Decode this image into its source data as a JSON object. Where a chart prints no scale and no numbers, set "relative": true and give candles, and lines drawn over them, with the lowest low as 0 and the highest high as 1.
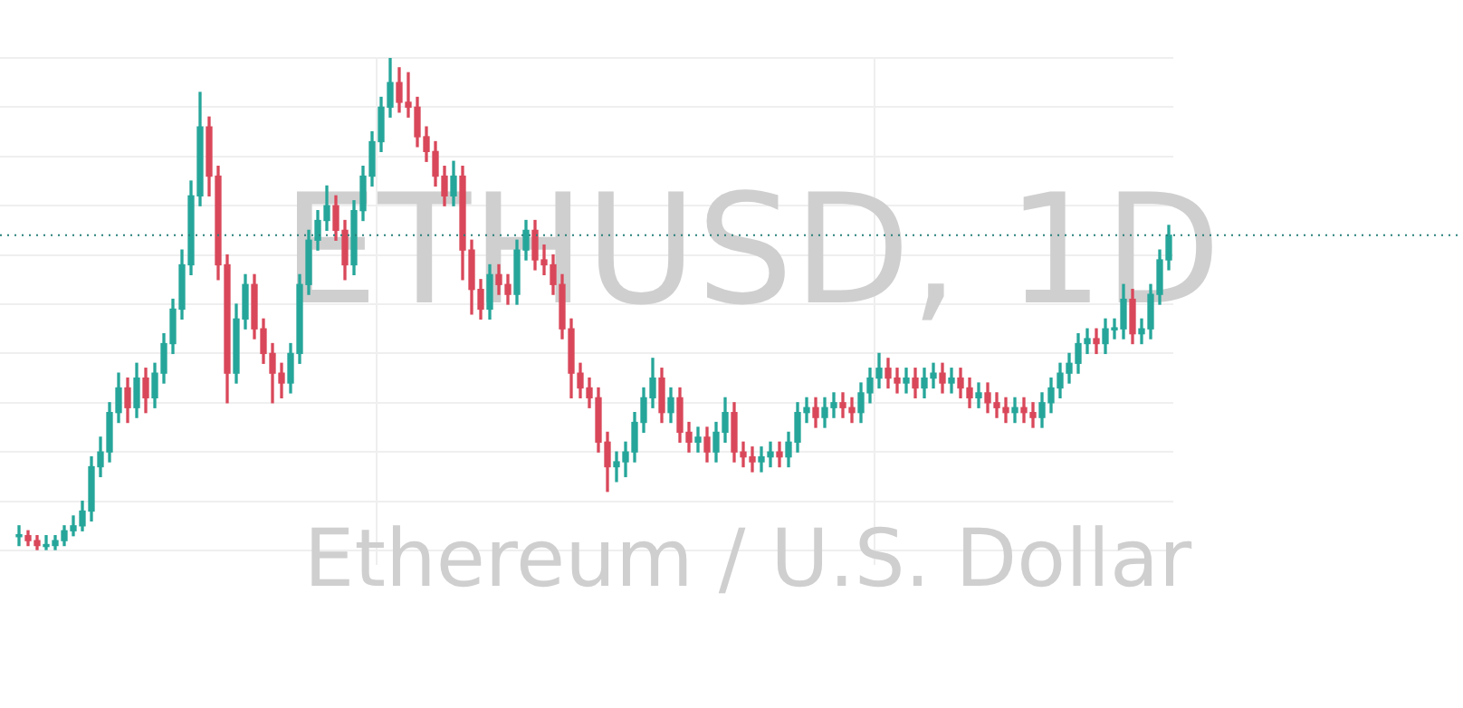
{
  "chart_data": {
    "type": "candlestick",
    "title": "ETHUSD, 1D",
    "subtitle": "Ethereum / U.S. Dollar",
    "relative": true,
    "grid": true,
    "categories": [
      null,
      null,
      null,
      null,
      null,
      null,
      null,
      null,
      null,
      null,
      null,
      null,
      null,
      null,
      null,
      null,
      null,
      null,
      null,
      null,
      null,
      null,
      null,
      null,
      null,
      null,
      null,
      null,
      null,
      null,
      null,
      null,
      null,
      null,
      null,
      null,
      null,
      null,
      null,
      null,
      null,
      null,
      null,
      null,
      null,
      null,
      null,
      null,
      null,
      null,
      null,
      null,
      null,
      null,
      null,
      null,
      null,
      null,
      null,
      null,
      null,
      null,
      null,
      null,
      null,
      null,
      null,
      null,
      null,
      null,
      null,
      null,
      null,
      null,
      null,
      null,
      null,
      null,
      null,
      null,
      null,
      null,
      null,
      null,
      null,
      null,
      null,
      null,
      null,
      null,
      null,
      null,
      null,
      null,
      null,
      null,
      null,
      null,
      null,
      null,
      null,
      null,
      null,
      null,
      null,
      null,
      null,
      null,
      null,
      null,
      null,
      null,
      null,
      null,
      null,
      null,
      null,
      null,
      null,
      null,
      null,
      null,
      null,
      null,
      null,
      null,
      null,
      null
    ],
    "ohlc": [
      [
        0.03,
        0.05,
        0.01,
        0.03
      ],
      [
        0.03,
        0.04,
        0.01,
        0.02
      ],
      [
        0.02,
        0.03,
        0.0,
        0.01
      ],
      [
        0.01,
        0.03,
        0.0,
        0.01
      ],
      [
        0.01,
        0.03,
        0.0,
        0.02
      ],
      [
        0.02,
        0.05,
        0.01,
        0.04
      ],
      [
        0.04,
        0.07,
        0.03,
        0.05
      ],
      [
        0.05,
        0.1,
        0.04,
        0.08
      ],
      [
        0.08,
        0.19,
        0.06,
        0.17
      ],
      [
        0.17,
        0.23,
        0.15,
        0.2
      ],
      [
        0.2,
        0.3,
        0.18,
        0.28
      ],
      [
        0.28,
        0.36,
        0.26,
        0.33
      ],
      [
        0.33,
        0.35,
        0.26,
        0.29
      ],
      [
        0.29,
        0.38,
        0.27,
        0.35
      ],
      [
        0.35,
        0.37,
        0.28,
        0.31
      ],
      [
        0.31,
        0.38,
        0.29,
        0.36
      ],
      [
        0.36,
        0.44,
        0.34,
        0.42
      ],
      [
        0.42,
        0.51,
        0.4,
        0.49
      ],
      [
        0.49,
        0.61,
        0.47,
        0.58
      ],
      [
        0.58,
        0.75,
        0.56,
        0.72
      ],
      [
        0.72,
        0.93,
        0.7,
        0.86
      ],
      [
        0.86,
        0.88,
        0.72,
        0.76
      ],
      [
        0.76,
        0.78,
        0.55,
        0.58
      ],
      [
        0.58,
        0.6,
        0.3,
        0.36
      ],
      [
        0.36,
        0.5,
        0.34,
        0.47
      ],
      [
        0.47,
        0.56,
        0.45,
        0.54
      ],
      [
        0.54,
        0.56,
        0.43,
        0.45
      ],
      [
        0.45,
        0.47,
        0.38,
        0.4
      ],
      [
        0.4,
        0.42,
        0.3,
        0.36
      ],
      [
        0.36,
        0.38,
        0.31,
        0.34
      ],
      [
        0.34,
        0.42,
        0.32,
        0.4
      ],
      [
        0.4,
        0.56,
        0.38,
        0.54
      ],
      [
        0.54,
        0.65,
        0.52,
        0.63
      ],
      [
        0.63,
        0.69,
        0.61,
        0.67
      ],
      [
        0.67,
        0.74,
        0.65,
        0.7
      ],
      [
        0.7,
        0.72,
        0.63,
        0.65
      ],
      [
        0.65,
        0.67,
        0.55,
        0.58
      ],
      [
        0.58,
        0.71,
        0.56,
        0.69
      ],
      [
        0.69,
        0.78,
        0.67,
        0.76
      ],
      [
        0.76,
        0.85,
        0.74,
        0.83
      ],
      [
        0.83,
        0.92,
        0.81,
        0.9
      ],
      [
        0.9,
        1.0,
        0.88,
        0.95
      ],
      [
        0.95,
        0.98,
        0.89,
        0.91
      ],
      [
        0.91,
        0.97,
        0.88,
        0.9
      ],
      [
        0.9,
        0.92,
        0.82,
        0.84
      ],
      [
        0.84,
        0.86,
        0.79,
        0.81
      ],
      [
        0.81,
        0.83,
        0.74,
        0.76
      ],
      [
        0.76,
        0.78,
        0.7,
        0.72
      ],
      [
        0.72,
        0.79,
        0.7,
        0.76
      ],
      [
        0.76,
        0.78,
        0.55,
        0.61
      ],
      [
        0.61,
        0.63,
        0.48,
        0.53
      ],
      [
        0.53,
        0.55,
        0.47,
        0.49
      ],
      [
        0.49,
        0.58,
        0.47,
        0.56
      ],
      [
        0.56,
        0.58,
        0.52,
        0.54
      ],
      [
        0.54,
        0.56,
        0.5,
        0.52
      ],
      [
        0.52,
        0.63,
        0.5,
        0.61
      ],
      [
        0.61,
        0.67,
        0.59,
        0.65
      ],
      [
        0.65,
        0.67,
        0.57,
        0.59
      ],
      [
        0.59,
        0.62,
        0.56,
        0.58
      ],
      [
        0.58,
        0.6,
        0.52,
        0.54
      ],
      [
        0.54,
        0.56,
        0.43,
        0.45
      ],
      [
        0.45,
        0.47,
        0.31,
        0.36
      ],
      [
        0.36,
        0.38,
        0.31,
        0.33
      ],
      [
        0.33,
        0.35,
        0.29,
        0.31
      ],
      [
        0.31,
        0.33,
        0.2,
        0.22
      ],
      [
        0.22,
        0.24,
        0.12,
        0.17
      ],
      [
        0.17,
        0.2,
        0.14,
        0.18
      ],
      [
        0.18,
        0.22,
        0.15,
        0.2
      ],
      [
        0.2,
        0.28,
        0.18,
        0.26
      ],
      [
        0.26,
        0.33,
        0.24,
        0.31
      ],
      [
        0.31,
        0.39,
        0.29,
        0.35
      ],
      [
        0.35,
        0.37,
        0.26,
        0.28
      ],
      [
        0.28,
        0.33,
        0.26,
        0.31
      ],
      [
        0.31,
        0.33,
        0.22,
        0.24
      ],
      [
        0.24,
        0.26,
        0.2,
        0.22
      ],
      [
        0.22,
        0.25,
        0.2,
        0.23
      ],
      [
        0.23,
        0.25,
        0.18,
        0.2
      ],
      [
        0.2,
        0.26,
        0.18,
        0.24
      ],
      [
        0.24,
        0.31,
        0.22,
        0.28
      ],
      [
        0.28,
        0.3,
        0.18,
        0.2
      ],
      [
        0.2,
        0.22,
        0.17,
        0.19
      ],
      [
        0.19,
        0.21,
        0.16,
        0.18
      ],
      [
        0.18,
        0.21,
        0.16,
        0.19
      ],
      [
        0.19,
        0.22,
        0.17,
        0.2
      ],
      [
        0.2,
        0.22,
        0.17,
        0.19
      ],
      [
        0.19,
        0.24,
        0.17,
        0.22
      ],
      [
        0.22,
        0.3,
        0.2,
        0.28
      ],
      [
        0.28,
        0.31,
        0.26,
        0.29
      ],
      [
        0.29,
        0.31,
        0.25,
        0.27
      ],
      [
        0.27,
        0.31,
        0.25,
        0.29
      ],
      [
        0.29,
        0.32,
        0.27,
        0.3
      ],
      [
        0.3,
        0.32,
        0.27,
        0.29
      ],
      [
        0.29,
        0.31,
        0.26,
        0.28
      ],
      [
        0.28,
        0.34,
        0.26,
        0.32
      ],
      [
        0.32,
        0.37,
        0.3,
        0.35
      ],
      [
        0.35,
        0.4,
        0.33,
        0.37
      ],
      [
        0.37,
        0.39,
        0.33,
        0.35
      ],
      [
        0.35,
        0.37,
        0.32,
        0.34
      ],
      [
        0.34,
        0.37,
        0.32,
        0.35
      ],
      [
        0.35,
        0.37,
        0.31,
        0.33
      ],
      [
        0.33,
        0.37,
        0.31,
        0.35
      ],
      [
        0.35,
        0.38,
        0.33,
        0.36
      ],
      [
        0.36,
        0.38,
        0.32,
        0.34
      ],
      [
        0.34,
        0.37,
        0.32,
        0.35
      ],
      [
        0.35,
        0.37,
        0.31,
        0.33
      ],
      [
        0.33,
        0.35,
        0.29,
        0.31
      ],
      [
        0.31,
        0.34,
        0.29,
        0.32
      ],
      [
        0.32,
        0.34,
        0.28,
        0.3
      ],
      [
        0.3,
        0.32,
        0.27,
        0.29
      ],
      [
        0.29,
        0.31,
        0.26,
        0.28
      ],
      [
        0.28,
        0.31,
        0.26,
        0.29
      ],
      [
        0.29,
        0.31,
        0.26,
        0.28
      ],
      [
        0.28,
        0.3,
        0.25,
        0.27
      ],
      [
        0.27,
        0.32,
        0.25,
        0.3
      ],
      [
        0.3,
        0.35,
        0.28,
        0.33
      ],
      [
        0.33,
        0.38,
        0.31,
        0.36
      ],
      [
        0.36,
        0.4,
        0.34,
        0.38
      ],
      [
        0.38,
        0.44,
        0.36,
        0.42
      ],
      [
        0.42,
        0.45,
        0.4,
        0.43
      ],
      [
        0.43,
        0.45,
        0.4,
        0.42
      ],
      [
        0.42,
        0.47,
        0.4,
        0.45
      ],
      [
        0.45,
        0.47,
        0.43,
        0.45
      ],
      [
        0.45,
        0.54,
        0.43,
        0.51
      ],
      [
        0.51,
        0.53,
        0.42,
        0.44
      ],
      [
        0.44,
        0.47,
        0.42,
        0.45
      ],
      [
        0.45,
        0.54,
        0.43,
        0.52
      ],
      [
        0.52,
        0.61,
        0.5,
        0.59
      ],
      [
        0.59,
        0.66,
        0.57,
        0.64
      ]
    ],
    "ref_lines": [
      {
        "axis": "y",
        "value": 0.64,
        "line_style": "dotted",
        "color": "#26807a"
      }
    ]
  }
}
